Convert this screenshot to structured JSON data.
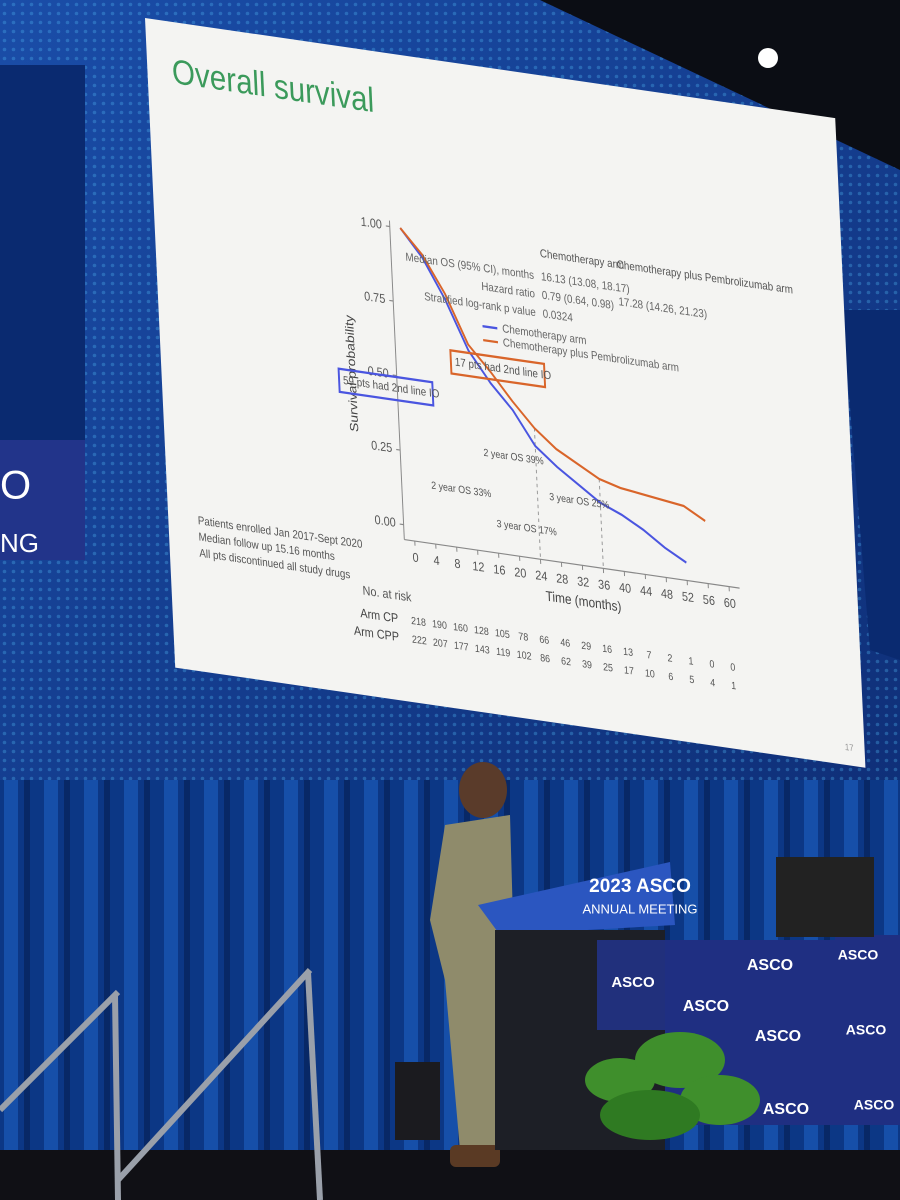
{
  "chart_data": {
    "type": "line",
    "title": "Overall survival",
    "y_label": "Survival probability",
    "x_label": "Time (months)",
    "x": [
      0,
      4,
      8,
      12,
      16,
      20,
      24,
      28,
      32,
      36,
      40,
      44,
      48,
      52,
      56,
      60
    ],
    "xlim": [
      -2,
      62
    ],
    "xticks": [
      0,
      4,
      8,
      12,
      16,
      20,
      24,
      28,
      32,
      36,
      40,
      44,
      48,
      52,
      56,
      60
    ],
    "ylim": [
      -0.05,
      1.02
    ],
    "yticks": [
      {
        "value": 0,
        "label": "0.00"
      },
      {
        "value": 0.25,
        "label": "0.25"
      },
      {
        "value": 0.5,
        "label": "0.50"
      },
      {
        "value": 0.75,
        "label": "0.75"
      },
      {
        "value": 1,
        "label": "1.00"
      }
    ],
    "series": [
      {
        "name": "Chemotherapy arm",
        "color": "#4a55e0",
        "values": [
          1.0,
          0.91,
          0.78,
          0.62,
          0.52,
          0.44,
          0.33,
          0.27,
          0.22,
          0.17,
          0.14,
          0.1,
          0.05,
          0.01,
          null,
          null
        ]
      },
      {
        "name": "Chemotherapy plus Pembrolizumab arm",
        "color": "#d9652a",
        "values": [
          1.0,
          0.92,
          0.8,
          0.64,
          0.56,
          0.47,
          0.39,
          0.33,
          0.29,
          0.25,
          0.23,
          0.22,
          0.21,
          0.2,
          0.16,
          null
        ]
      }
    ],
    "stats": {
      "row_labels": [
        "Median OS (95% CI), months",
        "Hazard ratio",
        "Stratified log-rank p value"
      ],
      "columns": [
        {
          "header": "Chemotherapy arm",
          "cells": [
            "16.13 (13.08, 18.17)",
            "0.79 (0.64, 0.98)",
            "0.0324"
          ]
        },
        {
          "header": "Chemotherapy plus Pembrolizumab arm",
          "cells": [
            "17.28 (14.26, 21.23)"
          ]
        }
      ]
    },
    "annotations": [
      "17 pts had 2nd line IO",
      "59 pts had 2nd line IO",
      "2 year OS 39%",
      "3 year OS 25%",
      "2 year OS 33%",
      "3 year OS 17%"
    ],
    "notes": [
      "Patients enrolled Jan 2017-Sept 2020",
      "Median follow up 15.16 months",
      "All pts discontinued all study drugs"
    ],
    "risk_table": {
      "header": "No. at risk",
      "rows": [
        {
          "label": "Arm CP",
          "counts": [
            "218",
            "190",
            "160",
            "128",
            "105",
            "78",
            "66",
            "46",
            "29",
            "16",
            "13",
            "7",
            "2",
            "1",
            "0",
            "0"
          ]
        },
        {
          "label": "Arm CPP",
          "counts": [
            "222",
            "207",
            "177",
            "143",
            "119",
            "102",
            "86",
            "62",
            "39",
            "25",
            "17",
            "10",
            "6",
            "5",
            "4",
            "1"
          ]
        }
      ]
    },
    "page_number": "17"
  },
  "scene": {
    "left_screen": [
      "O",
      "NG"
    ],
    "podium_title": "2023 ASCO",
    "podium_subtitle": "ANNUAL MEETING",
    "signs": [
      "ASCO",
      "ASCO",
      "ASCO",
      "ASCO",
      "ASCO",
      "ASCO",
      "ASCO",
      "ASCO"
    ]
  }
}
